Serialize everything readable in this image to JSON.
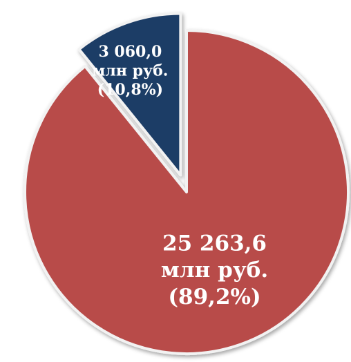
{
  "chart_data": {
    "type": "pie",
    "values": [
      25263.6,
      3060.0
    ],
    "value_labels": [
      [
        "25 263,6",
        "млн руб.",
        "(89,2%)"
      ],
      [
        "3 060,0",
        "млн руб.",
        "(10,8%)"
      ]
    ],
    "colors": [
      "#b84c4a",
      "#1f3c66"
    ]
  }
}
